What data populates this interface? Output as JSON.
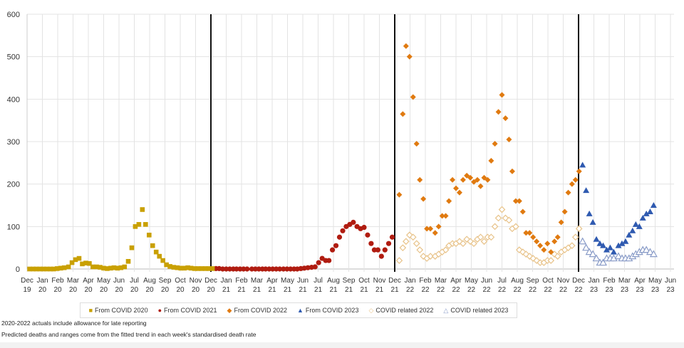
{
  "chart_data": {
    "type": "scatter",
    "ylim": [
      0,
      600
    ],
    "yticks": [
      0,
      100,
      200,
      300,
      400,
      500,
      600
    ],
    "xlabels": [
      "Dec 19",
      "Jan 20",
      "Feb 20",
      "Mar 20",
      "Apr 20",
      "May 20",
      "Jun 20",
      "Jul 20",
      "Aug 20",
      "Sep 20",
      "Oct 20",
      "Nov 20",
      "Dec 20",
      "Jan 21",
      "Feb 21",
      "Mar 21",
      "Apr 21",
      "May 21",
      "Jun 21",
      "Jul 21",
      "Aug 21",
      "Sep 21",
      "Oct 21",
      "Nov 21",
      "Dec 21",
      "Jan 22",
      "Feb 22",
      "Mar 22",
      "Apr 22",
      "May 22",
      "Jun 22",
      "Jul 22",
      "Aug 22",
      "Sep 22",
      "Oct 22",
      "Nov 22",
      "Dec 22",
      "Jan 23",
      "Feb 23",
      "Mar 23",
      "Apr 23",
      "May 23",
      "Jun 23"
    ],
    "year_dividers": [
      "Dec 20",
      "Dec 21",
      "Dec 22"
    ],
    "grid": true,
    "legend_position": "bottom",
    "series": [
      {
        "name": "From COVID 2020",
        "color": "#c9a000",
        "marker": "square",
        "dates": [
          "2019-12-20",
          "2019-12-27",
          "2020-01-03",
          "2020-01-10",
          "2020-01-17",
          "2020-01-24",
          "2020-01-31",
          "2020-02-07",
          "2020-02-14",
          "2020-02-21",
          "2020-02-28",
          "2020-03-06",
          "2020-03-13",
          "2020-03-20",
          "2020-03-27",
          "2020-04-03",
          "2020-04-10",
          "2020-04-17",
          "2020-04-24",
          "2020-05-01",
          "2020-05-08",
          "2020-05-15",
          "2020-05-22",
          "2020-05-29",
          "2020-06-05",
          "2020-06-12",
          "2020-06-19",
          "2020-06-26",
          "2020-07-03",
          "2020-07-10",
          "2020-07-17",
          "2020-07-24",
          "2020-07-31",
          "2020-08-07",
          "2020-08-14",
          "2020-08-21",
          "2020-08-28",
          "2020-09-04",
          "2020-09-11",
          "2020-09-18",
          "2020-09-25",
          "2020-10-02",
          "2020-10-09",
          "2020-10-16",
          "2020-10-23",
          "2020-10-30",
          "2020-11-06",
          "2020-11-13",
          "2020-11-20",
          "2020-11-27",
          "2020-12-04",
          "2020-12-11",
          "2020-12-18"
        ],
        "values": [
          0,
          0,
          0,
          0,
          0,
          0,
          0,
          0,
          1,
          2,
          3,
          5,
          15,
          22,
          25,
          12,
          14,
          13,
          5,
          5,
          4,
          2,
          1,
          2,
          3,
          2,
          3,
          5,
          18,
          50,
          100,
          105,
          140,
          105,
          80,
          55,
          40,
          30,
          20,
          10,
          6,
          4,
          3,
          2,
          2,
          3,
          2,
          1,
          1,
          1,
          1,
          1,
          1
        ]
      },
      {
        "name": "From COVID 2021",
        "color": "#b01c10",
        "marker": "circle",
        "dates": [
          "2020-12-25",
          "2021-01-01",
          "2021-01-08",
          "2021-01-15",
          "2021-01-22",
          "2021-01-29",
          "2021-02-05",
          "2021-02-12",
          "2021-02-19",
          "2021-02-26",
          "2021-03-05",
          "2021-03-12",
          "2021-03-19",
          "2021-03-26",
          "2021-04-02",
          "2021-04-09",
          "2021-04-16",
          "2021-04-23",
          "2021-04-30",
          "2021-05-07",
          "2021-05-14",
          "2021-05-21",
          "2021-05-28",
          "2021-06-04",
          "2021-06-11",
          "2021-06-18",
          "2021-06-25",
          "2021-07-02",
          "2021-07-09",
          "2021-07-16",
          "2021-07-23",
          "2021-07-30",
          "2021-08-06",
          "2021-08-13",
          "2021-08-20",
          "2021-08-27",
          "2021-09-03",
          "2021-09-10",
          "2021-09-17",
          "2021-09-24",
          "2021-10-01",
          "2021-10-08",
          "2021-10-15",
          "2021-10-22",
          "2021-10-29",
          "2021-11-05",
          "2021-11-12",
          "2021-11-19",
          "2021-11-26",
          "2021-12-03",
          "2021-12-10"
        ],
        "values": [
          1,
          1,
          0,
          0,
          0,
          0,
          0,
          0,
          0,
          0,
          0,
          0,
          0,
          0,
          0,
          0,
          0,
          0,
          0,
          0,
          0,
          0,
          0,
          0,
          1,
          2,
          3,
          4,
          5,
          15,
          25,
          20,
          20,
          45,
          55,
          75,
          90,
          100,
          105,
          110,
          100,
          95,
          98,
          80,
          60,
          45,
          45,
          30,
          45,
          60,
          75
        ]
      },
      {
        "name": "From COVID 2022",
        "color": "#e07a10",
        "marker": "diamond",
        "dates": [
          "2021-12-24",
          "2021-12-31",
          "2022-01-07",
          "2022-01-14",
          "2022-01-21",
          "2022-01-28",
          "2022-02-04",
          "2022-02-11",
          "2022-02-18",
          "2022-02-25",
          "2022-03-04",
          "2022-03-11",
          "2022-03-18",
          "2022-03-25",
          "2022-04-01",
          "2022-04-08",
          "2022-04-15",
          "2022-04-22",
          "2022-04-29",
          "2022-05-06",
          "2022-05-13",
          "2022-05-20",
          "2022-05-27",
          "2022-06-03",
          "2022-06-10",
          "2022-06-17",
          "2022-06-24",
          "2022-07-01",
          "2022-07-08",
          "2022-07-15",
          "2022-07-22",
          "2022-07-29",
          "2022-08-05",
          "2022-08-12",
          "2022-08-19",
          "2022-08-26",
          "2022-09-02",
          "2022-09-09",
          "2022-09-16",
          "2022-09-23",
          "2022-09-30",
          "2022-10-07",
          "2022-10-14",
          "2022-10-21",
          "2022-10-28",
          "2022-11-04",
          "2022-11-11",
          "2022-11-18",
          "2022-11-25",
          "2022-12-02",
          "2022-12-09",
          "2022-12-16"
        ],
        "values": [
          175,
          365,
          525,
          500,
          405,
          295,
          210,
          165,
          95,
          95,
          85,
          100,
          125,
          125,
          160,
          210,
          190,
          180,
          210,
          220,
          215,
          205,
          210,
          195,
          215,
          210,
          255,
          295,
          370,
          410,
          355,
          305,
          230,
          160,
          160,
          135,
          85,
          85,
          75,
          65,
          55,
          45,
          60,
          40,
          65,
          75,
          110,
          135,
          180,
          200,
          210,
          230
        ]
      },
      {
        "name": "From COVID 2023",
        "color": "#2f5ab0",
        "marker": "triangle",
        "dates": [
          "2022-12-23",
          "2022-12-30",
          "2023-01-06",
          "2023-01-13",
          "2023-01-20",
          "2023-01-27",
          "2023-02-03",
          "2023-02-10",
          "2023-02-17",
          "2023-02-24",
          "2023-03-03",
          "2023-03-10",
          "2023-03-17",
          "2023-03-24",
          "2023-03-31",
          "2023-04-07",
          "2023-04-14",
          "2023-04-21",
          "2023-04-28",
          "2023-05-05",
          "2023-05-12"
        ],
        "values": [
          245,
          185,
          130,
          110,
          70,
          60,
          55,
          45,
          50,
          40,
          55,
          60,
          65,
          80,
          90,
          105,
          100,
          120,
          130,
          135,
          150
        ]
      },
      {
        "name": "COVID related 2022",
        "color": "#e8c38a",
        "marker": "diamond-open",
        "dates": [
          "2021-12-24",
          "2021-12-31",
          "2022-01-07",
          "2022-01-14",
          "2022-01-21",
          "2022-01-28",
          "2022-02-04",
          "2022-02-11",
          "2022-02-18",
          "2022-02-25",
          "2022-03-04",
          "2022-03-11",
          "2022-03-18",
          "2022-03-25",
          "2022-04-01",
          "2022-04-08",
          "2022-04-15",
          "2022-04-22",
          "2022-04-29",
          "2022-05-06",
          "2022-05-13",
          "2022-05-20",
          "2022-05-27",
          "2022-06-03",
          "2022-06-10",
          "2022-06-17",
          "2022-06-24",
          "2022-07-01",
          "2022-07-08",
          "2022-07-15",
          "2022-07-22",
          "2022-07-29",
          "2022-08-05",
          "2022-08-12",
          "2022-08-19",
          "2022-08-26",
          "2022-09-02",
          "2022-09-09",
          "2022-09-16",
          "2022-09-23",
          "2022-09-30",
          "2022-10-07",
          "2022-10-14",
          "2022-10-21",
          "2022-10-28",
          "2022-11-04",
          "2022-11-11",
          "2022-11-18",
          "2022-11-25",
          "2022-12-02",
          "2022-12-09",
          "2022-12-16"
        ],
        "values": [
          20,
          50,
          65,
          80,
          75,
          60,
          45,
          30,
          25,
          30,
          30,
          35,
          40,
          45,
          55,
          60,
          60,
          65,
          60,
          70,
          65,
          60,
          70,
          75,
          65,
          75,
          75,
          100,
          120,
          140,
          120,
          115,
          95,
          100,
          45,
          40,
          35,
          30,
          25,
          20,
          15,
          15,
          20,
          20,
          35,
          30,
          40,
          45,
          50,
          55,
          75,
          95
        ]
      },
      {
        "name": "COVID related 2023",
        "color": "#8a9cc8",
        "marker": "triangle-open",
        "dates": [
          "2022-12-23",
          "2022-12-30",
          "2023-01-06",
          "2023-01-13",
          "2023-01-20",
          "2023-01-27",
          "2023-02-03",
          "2023-02-10",
          "2023-02-17",
          "2023-02-24",
          "2023-03-03",
          "2023-03-10",
          "2023-03-17",
          "2023-03-24",
          "2023-03-31",
          "2023-04-07",
          "2023-04-14",
          "2023-04-21",
          "2023-04-28",
          "2023-05-05",
          "2023-05-12"
        ],
        "values": [
          65,
          50,
          40,
          35,
          25,
          15,
          15,
          25,
          25,
          25,
          30,
          25,
          25,
          25,
          30,
          35,
          40,
          45,
          45,
          40,
          35
        ]
      }
    ]
  },
  "notes": [
    "2020-2022  actuals include allowance for late reporting",
    "Predicted deaths and ranges come from the fitted trend in each week's standardised death rate"
  ]
}
